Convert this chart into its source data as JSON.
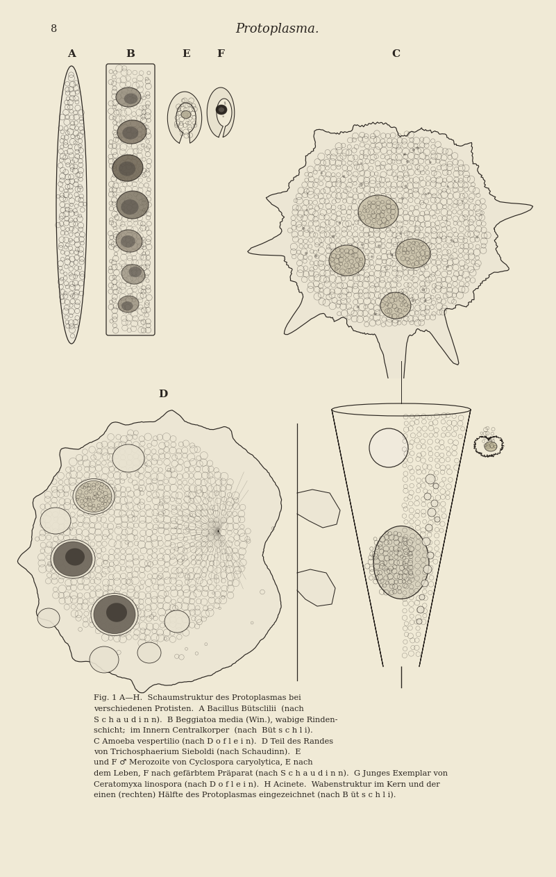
{
  "page_bg": "#f0ead6",
  "page_number": "8",
  "page_title": "Protoplasma.",
  "caption_lines": [
    "Fig. 1 A—H.  Schaumstruktur des Protoplasmas bei",
    "verschiedenen Protisten.  A Bacillus Bütsclilii  (nach",
    "S c h a u d i n n).  B Beggiatoa media (Win.), wabige Rinden-",
    "schicht;  im Innern Centralkorper  (nach  Büt s c h l i).",
    "C Amoeba vespertilio (nach D o f l e i n).  D Teil des Randes",
    "von Trichosphaerium Sieboldi (nach Schaudinn).  E",
    "und F ♂ Merozoite von Cyclospora caryolytica, E nach",
    "dem Leben, F nach gefärbtem Präparat (nach S c h a u d i n n).  G Junges Exemplar von",
    "Ceratomyxa linospora (nach D o f l e i n).  H Acinete.  Wabenstruktur im Kern und der",
    "einen (rechten) Hälfte des Protoplasmas eingezeichnet (nach B üt s c h l i)."
  ],
  "ink_color": "#2a2520",
  "bg_fill": "#ece6d2"
}
